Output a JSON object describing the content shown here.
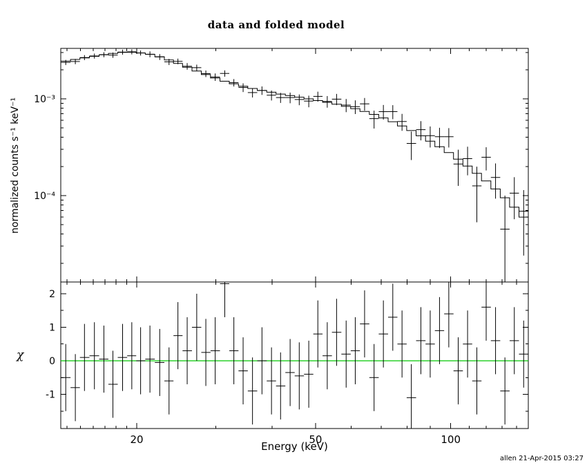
{
  "chart_data": {
    "type": "scatter",
    "title": "data and folded model",
    "xlabel": "Energy (keV)",
    "ylabel_top": "normalized counts s⁻¹ keV⁻¹",
    "ylabel_bottom": "χ",
    "footer": "allen 21-Apr-2015 03:27",
    "x_scale": "log",
    "y_scale_top": "log",
    "y_scale_bottom": "linear",
    "xlim": [
      13.55,
      148.8
    ],
    "ylim_top": [
      1.28e-05,
      0.00332
    ],
    "ylim_bottom": [
      -2.02,
      2.35
    ],
    "x_ticks": [
      {
        "v": 20,
        "label": "20"
      },
      {
        "v": 50,
        "label": "50"
      },
      {
        "v": 100,
        "label": "100"
      }
    ],
    "y_ticks_top": [
      {
        "v": 0.001,
        "label": "10⁻³"
      },
      {
        "v": 0.0001,
        "label": "10⁻⁴"
      }
    ],
    "y_ticks_bottom": [
      {
        "v": -1,
        "label": "-1"
      },
      {
        "v": 0,
        "label": "0"
      },
      {
        "v": 1,
        "label": "1"
      },
      {
        "v": 2,
        "label": "2"
      }
    ],
    "colors": {
      "data": "#000000",
      "model": "#000000",
      "zero_line": "#00c800",
      "background": "#ffffff"
    },
    "bin_half_width_factor": 1.0242,
    "legend": "none",
    "grid": "off",
    "series": {
      "energy_kev": [
        13.9,
        14.6,
        15.3,
        16.1,
        16.9,
        17.7,
        18.6,
        19.5,
        20.4,
        21.4,
        22.5,
        23.6,
        24.7,
        25.9,
        27.2,
        28.5,
        29.9,
        31.4,
        32.9,
        34.5,
        36.2,
        38.0,
        39.9,
        41.8,
        43.9,
        46.0,
        48.3,
        50.6,
        53.1,
        55.7,
        58.5,
        61.3,
        64.3,
        67.5,
        70.8,
        74.3,
        77.9,
        81.7,
        85.8,
        90.0,
        94.4,
        99.0,
        103.9,
        109.0,
        114.3,
        119.9,
        125.8,
        132.0,
        138.5,
        145.3
      ],
      "rate": [
        0.00238,
        0.00243,
        0.00267,
        0.00277,
        0.00286,
        0.00283,
        0.00304,
        0.00306,
        0.00298,
        0.00289,
        0.00271,
        0.00241,
        0.00244,
        0.00217,
        0.0021,
        0.00182,
        0.00168,
        0.00183,
        0.00147,
        0.00131,
        0.00116,
        0.00122,
        0.00109,
        0.00103,
        0.00103,
        0.000984,
        0.000948,
        0.00106,
        0.000939,
        0.000992,
        0.000862,
        0.00083,
        0.000887,
        0.000624,
        0.000737,
        0.000738,
        0.000583,
        0.000346,
        0.00048,
        0.000416,
        0.000406,
        0.000406,
        0.000212,
        0.000241,
        0.000126,
        0.000249,
        0.000154,
        4.5e-05,
        0.000106,
        6.9e-05
      ],
      "rate_err": [
        0.000147,
        0.000153,
        0.000159,
        0.000165,
        0.000171,
        0.000177,
        0.000181,
        0.000182,
        0.000179,
        0.000202,
        0.00019,
        0.000176,
        0.000162,
        0.00017,
        0.000155,
        0.000142,
        0.000148,
        0.000137,
        0.000129,
        0.000135,
        0.000128,
        0.000122,
        0.000129,
        0.000123,
        0.00013,
        0.000125,
        0.00013,
        0.000125,
        0.000129,
        0.000132,
        0.000134,
        0.000134,
        0.000133,
        0.000131,
        0.000127,
        0.000122,
        0.000116,
        0.000113,
        0.000108,
        0.000102,
        9.6e-05,
        9.2e-05,
        8.6e-05,
        7.9e-05,
        7.3e-05,
        6.7e-05,
        6.1e-05,
        5.5e-05,
        4.9e-05,
        4.5e-05
      ],
      "model": [
        0.00245,
        0.00255,
        0.00265,
        0.00275,
        0.00285,
        0.00295,
        0.00302,
        0.00303,
        0.00298,
        0.00288,
        0.00272,
        0.00252,
        0.00232,
        0.00212,
        0.00194,
        0.00178,
        0.00164,
        0.00152,
        0.00143,
        0.00135,
        0.00128,
        0.00122,
        0.00117,
        0.00112,
        0.00108,
        0.00104,
        0.001,
        0.00096,
        0.00092,
        0.00088,
        0.000835,
        0.00079,
        0.00074,
        0.00069,
        0.000635,
        0.00058,
        0.000525,
        0.00047,
        0.000415,
        0.000365,
        0.00032,
        0.000278,
        0.000238,
        0.000202,
        0.00017,
        0.000142,
        0.000117,
        9.5e-05,
        7.6e-05,
        6e-05
      ],
      "chi": [
        -0.5,
        -0.8,
        0.1,
        0.15,
        0.05,
        -0.7,
        0.1,
        0.15,
        0.0,
        0.05,
        -0.05,
        -0.6,
        0.75,
        0.3,
        1.0,
        0.25,
        0.3,
        2.3,
        0.3,
        -0.3,
        -0.9,
        0.0,
        -0.6,
        -0.75,
        -0.35,
        -0.45,
        -0.4,
        0.8,
        0.15,
        0.85,
        0.2,
        0.3,
        1.1,
        -0.5,
        0.8,
        1.3,
        0.5,
        -1.1,
        0.6,
        0.5,
        0.9,
        1.4,
        -0.3,
        0.5,
        -0.6,
        1.6,
        0.6,
        -0.9,
        0.6,
        0.2
      ],
      "chi_err": 1
    }
  }
}
